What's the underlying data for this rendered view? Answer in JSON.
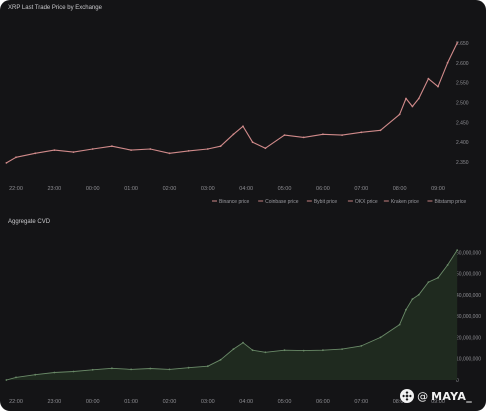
{
  "chart_data": [
    {
      "type": "line",
      "title": "XRP Last Trade Price by Exchange",
      "x_ticks": [
        "22:00",
        "23:00",
        "00:00",
        "01:00",
        "02:00",
        "03:00",
        "04:00",
        "05:00",
        "06:00",
        "07:00",
        "08:00",
        "09:00"
      ],
      "y_ticks": [
        "2.350",
        "2.400",
        "2.450",
        "2.500",
        "2.550",
        "2.600",
        "2.650"
      ],
      "ylim": [
        2.33,
        2.67
      ],
      "x": [
        "21:45",
        "22:00",
        "22:30",
        "23:00",
        "23:30",
        "00:00",
        "00:30",
        "01:00",
        "01:30",
        "02:00",
        "02:30",
        "03:00",
        "03:20",
        "03:40",
        "03:55",
        "04:10",
        "04:30",
        "05:00",
        "05:30",
        "06:00",
        "06:30",
        "07:00",
        "07:30",
        "08:00",
        "08:10",
        "08:20",
        "08:30",
        "08:45",
        "09:00",
        "09:15",
        "09:30"
      ],
      "legend_position": "bottom-right",
      "legend": [
        "Binance price",
        "Coinbase price",
        "Bybit price",
        "OKX price",
        "Kraken price",
        "Bitstamp price"
      ],
      "series": [
        {
          "name": "Binance price",
          "color": "#d08a8a",
          "values": [
            2.348,
            2.362,
            2.372,
            2.38,
            2.375,
            2.383,
            2.39,
            2.38,
            2.383,
            2.372,
            2.378,
            2.383,
            2.39,
            2.42,
            2.44,
            2.4,
            2.385,
            2.418,
            2.412,
            2.42,
            2.418,
            2.425,
            2.43,
            2.47,
            2.51,
            2.49,
            2.51,
            2.56,
            2.54,
            2.6,
            2.65
          ]
        }
      ],
      "grid": false
    },
    {
      "type": "area",
      "title": "Aggregate CVD",
      "x_ticks": [
        "22:00",
        "23:00",
        "00:00",
        "01:00",
        "02:00",
        "03:00",
        "04:00",
        "05:00",
        "06:00",
        "07:00",
        "08:00",
        "09:00"
      ],
      "y_ticks": [
        "0",
        "10,000,000",
        "20,000,000",
        "30,000,000",
        "40,000,000",
        "50,000,000",
        "60,000,000"
      ],
      "ylim": [
        0,
        62000000
      ],
      "x": [
        "21:45",
        "22:00",
        "22:30",
        "23:00",
        "23:30",
        "00:00",
        "00:30",
        "01:00",
        "01:30",
        "02:00",
        "02:30",
        "03:00",
        "03:20",
        "03:40",
        "03:55",
        "04:10",
        "04:30",
        "05:00",
        "05:30",
        "06:00",
        "06:30",
        "07:00",
        "07:30",
        "08:00",
        "08:10",
        "08:20",
        "08:30",
        "08:45",
        "09:00",
        "09:15",
        "09:30"
      ],
      "series": [
        {
          "name": "Aggregate CVD",
          "color": "#6a8a68",
          "fill": "#1f2a1f",
          "values": [
            0,
            1200000,
            2500000,
            3500000,
            4000000,
            4800000,
            5500000,
            5000000,
            5400000,
            5000000,
            5800000,
            6500000,
            9500000,
            14500000,
            17500000,
            14000000,
            13000000,
            14000000,
            13800000,
            14000000,
            14500000,
            16000000,
            20000000,
            26000000,
            33000000,
            38000000,
            40000000,
            46000000,
            48000000,
            54000000,
            61000000
          ]
        }
      ],
      "grid": false
    }
  ],
  "watermark": {
    "at": "@",
    "text": "MAYA_"
  }
}
